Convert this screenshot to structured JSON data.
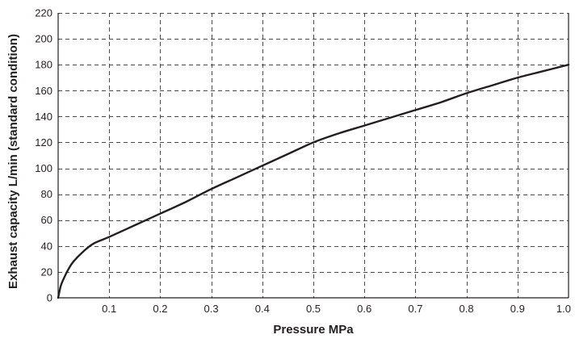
{
  "chart_data": {
    "type": "line",
    "title": "",
    "xlabel": "Pressure MPa",
    "ylabel": "Exhaust capacity L/min (standard condition)",
    "xlim": [
      0,
      1.0
    ],
    "ylim": [
      0,
      220
    ],
    "grid": true,
    "grid_style": "dashed",
    "line_color": "#231f20",
    "x_ticks": [
      0.1,
      0.2,
      0.3,
      0.4,
      0.5,
      0.6,
      0.7,
      0.8,
      0.9,
      1.0
    ],
    "x_tick_labels": [
      "0.1",
      "0.2",
      "0.3",
      "0.4",
      "0.5",
      "0.6",
      "0.7",
      "0.8",
      "0.9",
      "1.0"
    ],
    "y_ticks": [
      0,
      20,
      40,
      60,
      80,
      100,
      120,
      140,
      160,
      180,
      200,
      220
    ],
    "y_tick_labels": [
      "0",
      "20",
      "40",
      "60",
      "80",
      "100",
      "120",
      "140",
      "160",
      "180",
      "200",
      "220"
    ],
    "series": [
      {
        "x": [
          0,
          0.005,
          0.01,
          0.02,
          0.03,
          0.05,
          0.07,
          0.1,
          0.15,
          0.2,
          0.25,
          0.3,
          0.35,
          0.4,
          0.45,
          0.5,
          0.55,
          0.6,
          0.65,
          0.7,
          0.75,
          0.8,
          0.85,
          0.9,
          0.95,
          1.0
        ],
        "values": [
          0,
          9,
          14,
          22,
          28,
          36,
          42,
          47,
          56,
          65,
          74,
          84,
          93,
          102,
          111,
          120,
          127,
          133,
          139,
          145,
          151,
          158,
          164,
          170,
          175,
          180
        ]
      }
    ]
  }
}
